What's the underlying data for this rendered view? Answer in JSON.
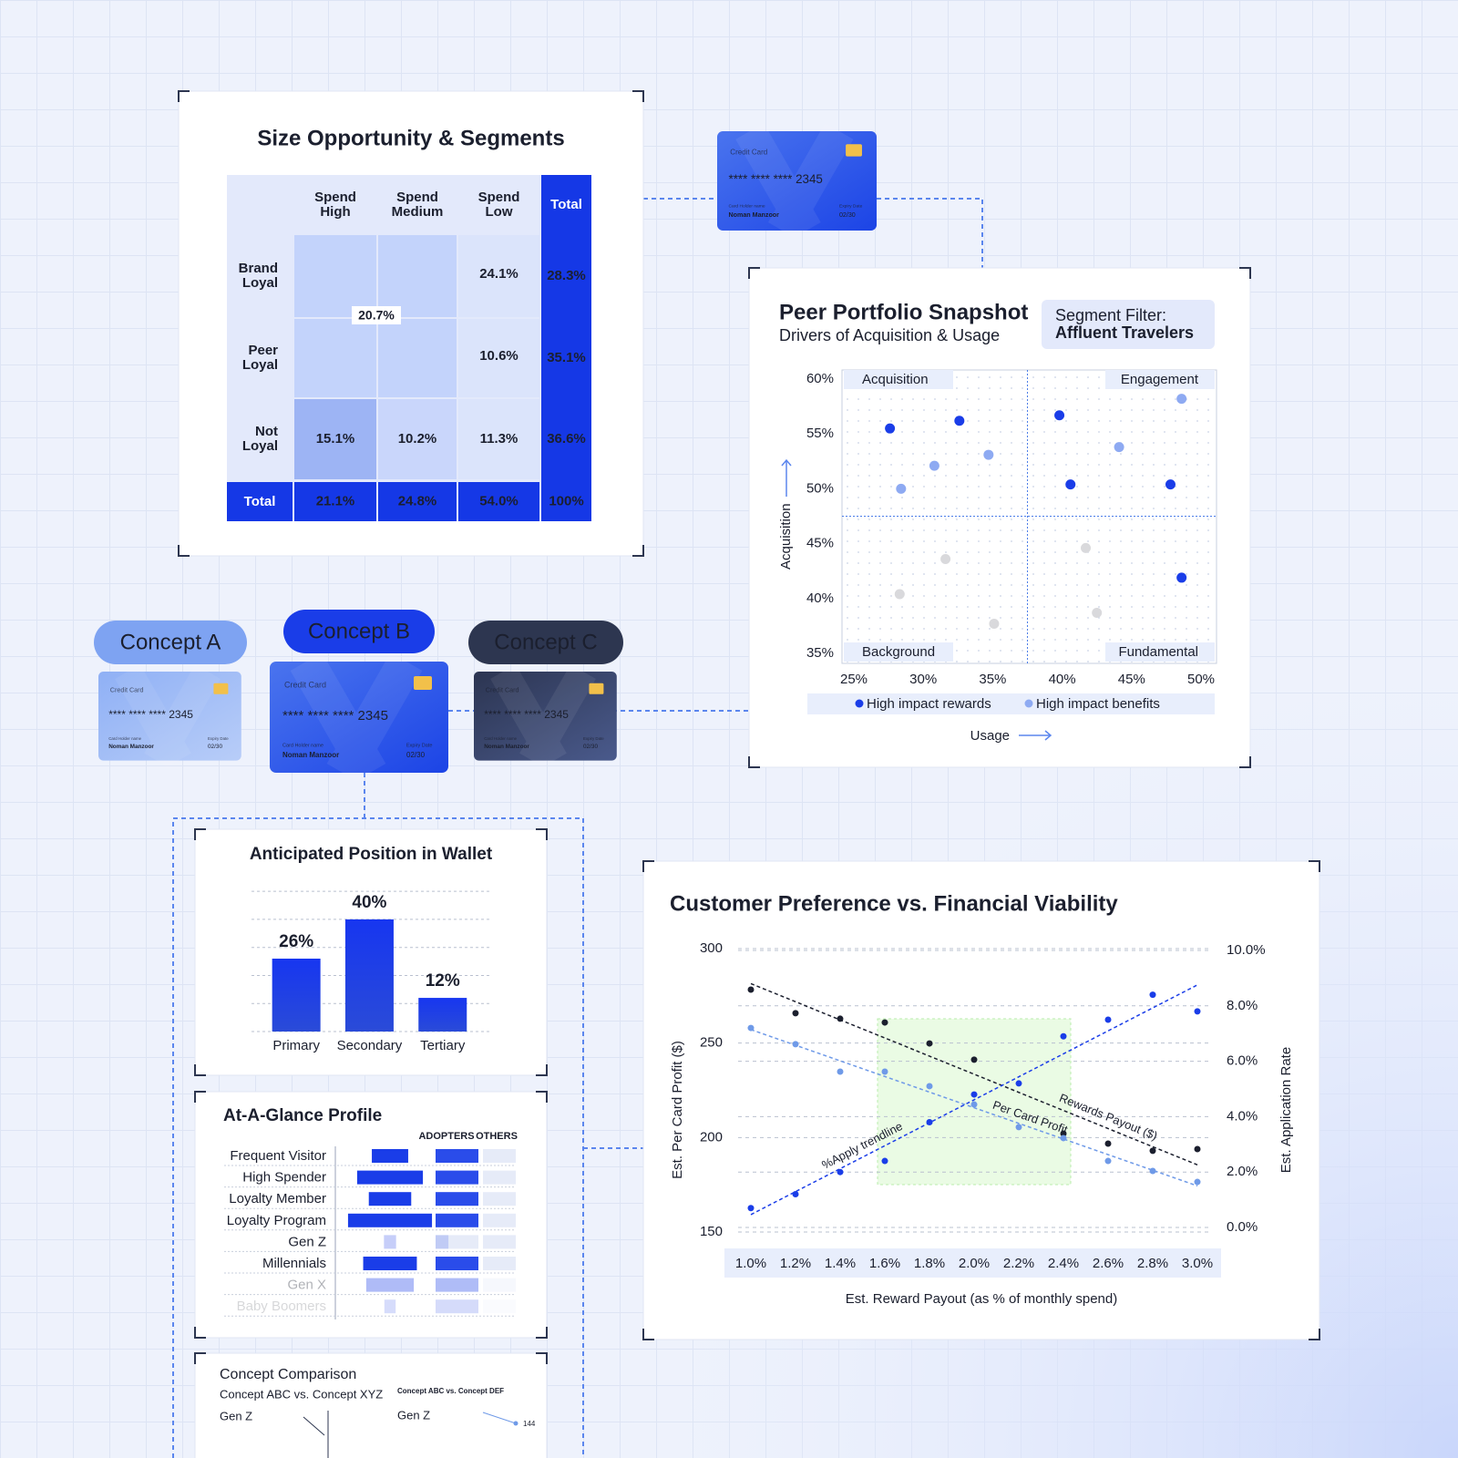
{
  "table": {
    "title": "Size Opportunity & Segments",
    "columns": [
      "Spend High",
      "Spend Medium",
      "Spend Low",
      "Total"
    ],
    "merged_cell": "20.7%",
    "rows": [
      {
        "label": "Brand Loyal",
        "cells": [
          "24.1%",
          "28.3%"
        ]
      },
      {
        "label": "Peer Loyal",
        "cells": [
          "10.6%",
          "35.1%"
        ]
      },
      {
        "label": "Not Loyal",
        "cells": [
          "15.1%",
          "10.2%",
          "11.3%",
          "36.6%"
        ]
      },
      {
        "label": "Total",
        "cells": [
          "21.1%",
          "24.8%",
          "54.0%",
          "100%"
        ]
      }
    ]
  },
  "card": {
    "brand": "Credit Card",
    "number": "**** **** **** 2345",
    "holder_label": "Card Holder name",
    "holder": "Noman Manzoor",
    "expiry_label": "Expiry Date",
    "expiry": "02/30"
  },
  "concepts": [
    "Concept A",
    "Concept B",
    "Concept C"
  ],
  "chart_data": [
    {
      "type": "scatter",
      "title": "Peer Portfolio Snapshot",
      "subtitle": "Drivers of Acquisition & Usage",
      "filter_label": "Segment Filter:",
      "filter_value": "Affluent Travelers",
      "quadrant_labels": [
        "Acquisition",
        "Engagement",
        "Background",
        "Fundamental"
      ],
      "x_label": "Usage",
      "y_label": "Acquisition",
      "xlim": [
        25,
        50
      ],
      "ylim": [
        35,
        60
      ],
      "xticks": [
        {
          "value": 25,
          "label": "25%"
        },
        {
          "value": 30,
          "label": "30%"
        },
        {
          "value": 35,
          "label": "35%"
        },
        {
          "value": 40,
          "label": "40%"
        },
        {
          "value": 45,
          "label": "45%"
        },
        {
          "value": 50,
          "label": "50%"
        }
      ],
      "yticks": [
        {
          "value": 35,
          "label": "35%"
        },
        {
          "value": 40,
          "label": "40%"
        },
        {
          "value": 45,
          "label": "45%"
        },
        {
          "value": 50,
          "label": "50%"
        },
        {
          "value": 55,
          "label": "55%"
        },
        {
          "value": 60,
          "label": "60%"
        }
      ],
      "series": [
        {
          "name": "High impact rewards",
          "color": "#1a3de8",
          "x": [
            27.6,
            32.6,
            39.8,
            40.6,
            47.8,
            48.6
          ],
          "y": [
            55.5,
            56.2,
            56.7,
            50.4,
            50.4,
            41.9
          ]
        },
        {
          "name": "High impact benefits",
          "color": "#8eaaf2",
          "x": [
            28.4,
            30.8,
            34.7,
            44.1,
            48.6
          ],
          "y": [
            50.0,
            52.1,
            53.1,
            53.8,
            58.2
          ]
        },
        {
          "color": "#d9d9dc",
          "x": [
            28.3,
            31.6,
            35.1,
            41.7,
            42.5
          ],
          "y": [
            40.4,
            43.6,
            37.7,
            44.6,
            38.7
          ]
        }
      ]
    },
    {
      "type": "bar",
      "title": "Anticipated Position in Wallet",
      "categories": [
        "Primary",
        "Secondary",
        "Tertiary"
      ],
      "values": [
        26,
        40,
        12
      ],
      "value_labels": [
        "26%",
        "40%",
        "12%"
      ],
      "color": "#1a3de8",
      "ylim": [
        0,
        52
      ],
      "yticks": [
        0,
        10,
        20,
        30,
        40,
        50
      ],
      "grid": true
    },
    {
      "type": "bar",
      "orientation": "horizontal",
      "title": "At-A-Glance Profile",
      "categories": [
        "Frequent Visitor",
        "High Spender",
        "Loyalty Member",
        "Loyalty Program",
        "Gen Z",
        "Millennials",
        "Gen X",
        "Baby Boomers"
      ],
      "xlim": [
        0,
        100
      ],
      "series": [
        {
          "name": "ADOPTERS",
          "color": "#1a3de8",
          "values": [
            42,
            76,
            49,
            97,
            14,
            62,
            55,
            13
          ]
        },
        {
          "name": "OTHERS",
          "color": "#2a4cea",
          "values": [
            100,
            100,
            100,
            100,
            30,
            100,
            100,
            100
          ]
        }
      ]
    },
    {
      "type": "scatter",
      "title": "Customer Preference vs. Financial Viability",
      "x_label": "Est. Reward Payout (as % of monthly spend)",
      "y_label": "Est. Per Card Profit ($)",
      "y2_label": "Est. Application Rate",
      "x": [
        1.0,
        1.2,
        1.4,
        1.6,
        1.8,
        2.0,
        2.2,
        2.4,
        2.6,
        2.8,
        3.0
      ],
      "xlim": [
        1.0,
        3.0
      ],
      "xticks": [
        {
          "value": 1.0,
          "label": "1.0%"
        },
        {
          "value": 1.2,
          "label": "1.2%"
        },
        {
          "value": 1.4,
          "label": "1.4%"
        },
        {
          "value": 1.6,
          "label": "1.6%"
        },
        {
          "value": 1.8,
          "label": "1.8%"
        },
        {
          "value": 2.0,
          "label": "2.0%"
        },
        {
          "value": 2.2,
          "label": "2.2%"
        },
        {
          "value": 2.4,
          "label": "2.4%"
        },
        {
          "value": 2.6,
          "label": "2.6%"
        },
        {
          "value": 2.8,
          "label": "2.8%"
        },
        {
          "value": 3.0,
          "label": "3.0%"
        }
      ],
      "ylim": [
        150,
        300
      ],
      "yticks": [
        150,
        200,
        250,
        300
      ],
      "y2lim": [
        0,
        10
      ],
      "y2ticks": [
        {
          "value": 0,
          "label": "0.0%"
        },
        {
          "value": 2,
          "label": "2.0%"
        },
        {
          "value": 4,
          "label": "4.0%"
        },
        {
          "value": 6,
          "label": "6.0%"
        },
        {
          "value": 8,
          "label": "8.0%"
        },
        {
          "value": 10,
          "label": "10.0%"
        }
      ],
      "highlight_range": [
        1.6,
        2.4
      ],
      "grid": true,
      "series": [
        {
          "name": "Rewards Payout ($)",
          "color": "#1b1f2e",
          "values": [
            278.3,
            265.8,
            262.9,
            260.9,
            249.8,
            241.2,
            null,
            202.1,
            196.8,
            193.0,
            193.9
          ]
        },
        {
          "name": "Per Card Profit",
          "color": "#6f9ae8",
          "values": [
            258.0,
            249.4,
            234.9,
            234.9,
            227.2,
            217.5,
            205.5,
            199.7,
            187.6,
            182.3,
            176.5
          ]
        },
        {
          "name": "%Apply trendline",
          "color": "#1a3de8",
          "axis": "y2",
          "values": [
            0.7,
            1.2,
            2.0,
            2.4,
            3.8,
            4.8,
            5.2,
            6.9,
            7.5,
            8.4,
            7.8
          ]
        }
      ]
    }
  ],
  "comparison": {
    "title": "Concept Comparison",
    "left_subtitle": "Concept ABC vs. Concept XYZ",
    "right_subtitle": "Concept ABC vs. Concept DEF",
    "left_row": "Gen Z",
    "right_row": "Gen Z",
    "right_value": "144"
  }
}
